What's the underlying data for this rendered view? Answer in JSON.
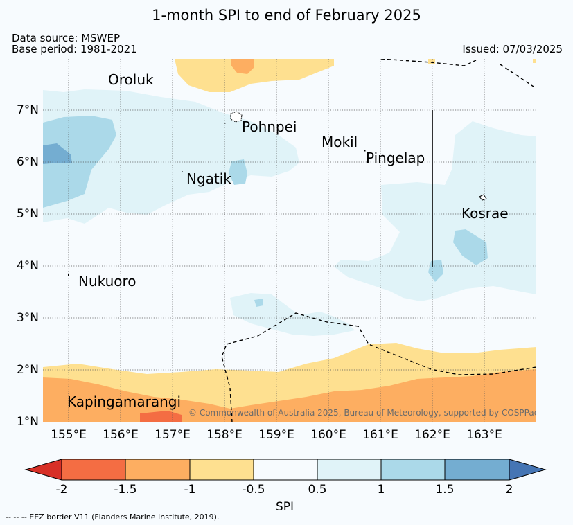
{
  "header": {
    "title": "1-month SPI to end of February 2025",
    "data_source": "Data source: MSWEP",
    "base_period": "Base period: 1981-2021",
    "issued": "Issued: 07/03/2025"
  },
  "map": {
    "x_ticks": [
      "155°E",
      "156°E",
      "157°E",
      "158°E",
      "159°E",
      "160°E",
      "161°E",
      "162°E",
      "163°E"
    ],
    "y_ticks": [
      "7°N",
      "6°N",
      "5°N",
      "4°N",
      "3°N",
      "2°N",
      "1°N"
    ],
    "places": {
      "oroluk": "Oroluk",
      "pohnpei": "Pohnpei",
      "mokil": "Mokil",
      "pingelap": "Pingelap",
      "ngatik": "Ngatik",
      "kosrae": "Kosrae",
      "nukuoro": "Nukuoro",
      "kapingamarangi": "Kapingamarangi"
    },
    "copyright": "© Commonwealth of Australia 2025, Bureau of Meteorology, supported by COSPPac",
    "colors": {
      "spi_-2_to_-1.5": "#f46d43",
      "spi_-1.5_to_-1": "#fdae61",
      "spi_-1_to_-0.5": "#fee090",
      "spi_-0.5_to_0.5": "#f7fbfe",
      "spi_0.5_to_1": "#e0f3f8",
      "spi_1_to_1.5": "#abd9e9",
      "spi_1.5_to_2": "#74add1"
    }
  },
  "colorbar": {
    "labels": [
      "-2",
      "-1.5",
      "-1",
      "-0.5",
      "0.5",
      "1",
      "1.5",
      "2"
    ],
    "title": "SPI",
    "colors": {
      "below": "#d73027",
      "c1": "#f46d43",
      "c2": "#fdae61",
      "c3": "#fee090",
      "c4": "#f7fbfe",
      "c5": "#e0f3f8",
      "c6": "#abd9e9",
      "c7": "#74add1",
      "above": "#4575b4"
    }
  },
  "footer": {
    "eez_note": "-- -- -- EEZ border V11 (Flanders Marine Institute, 2019)."
  }
}
